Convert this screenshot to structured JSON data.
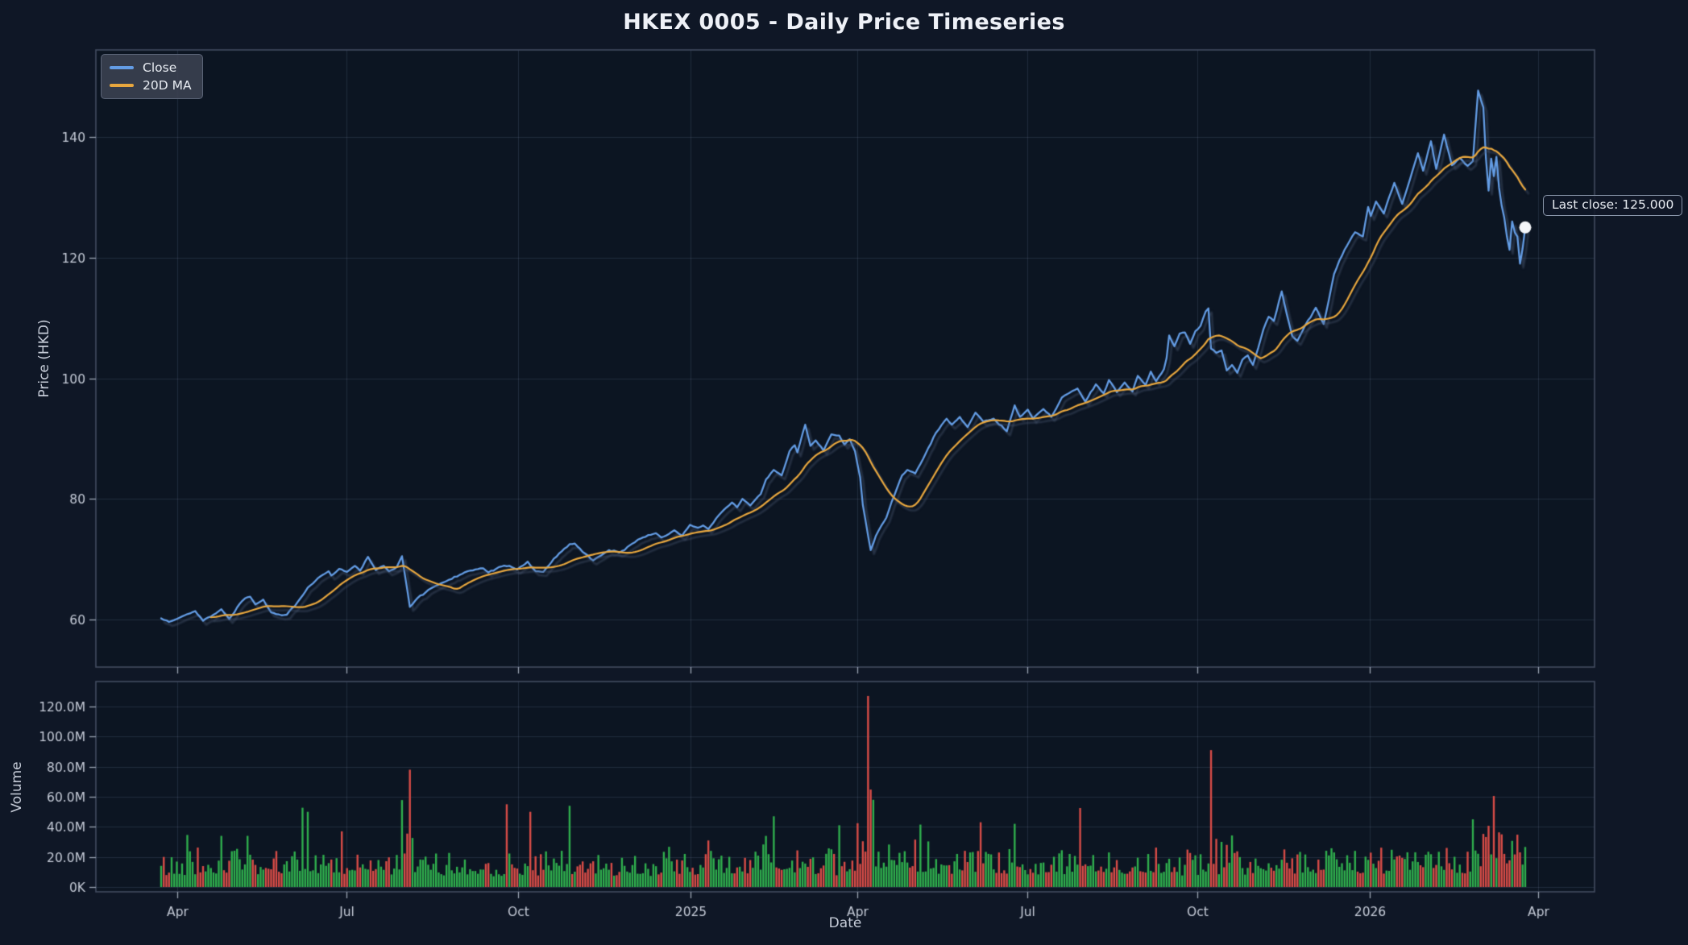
{
  "title": "HKEX 0005 - Daily Price Timeseries",
  "price_chart": {
    "ylabel": "Price (HKD)",
    "legend": [
      {
        "label": "Close",
        "color": "#639ce4"
      },
      {
        "label": "20D MA",
        "color": "#e8a73e"
      }
    ],
    "annotation": {
      "text": "Last close: 125.000"
    },
    "y_ticks": [
      {
        "label": "60",
        "value": 60
      },
      {
        "label": "80",
        "value": 80
      },
      {
        "label": "100",
        "value": 100
      },
      {
        "label": "120",
        "value": 120
      },
      {
        "label": "140",
        "value": 140
      }
    ],
    "ylim": [
      52.1,
      154.4
    ]
  },
  "volume_chart": {
    "ylabel": "Volume",
    "y_ticks": [
      {
        "label": "0K",
        "value": 0
      },
      {
        "label": "20.0M",
        "value": 20
      },
      {
        "label": "40.0M",
        "value": 40
      },
      {
        "label": "60.0M",
        "value": 60
      },
      {
        "label": "80.0M",
        "value": 80
      },
      {
        "label": "100.0M",
        "value": 100
      },
      {
        "label": "120.0M",
        "value": 120
      }
    ],
    "ylim": [
      -3.2,
      136.6
    ]
  },
  "x_axis": {
    "label": "Date",
    "ticks": [
      {
        "label": "Apr",
        "day": 6.2
      },
      {
        "label": "Jul",
        "day": 70.8
      },
      {
        "label": "Oct",
        "day": 136.3
      },
      {
        "label": "2025",
        "day": 202.2
      },
      {
        "label": "Apr",
        "day": 265.9
      },
      {
        "label": "Jul",
        "day": 330.8
      },
      {
        "label": "Oct",
        "day": 395.8
      },
      {
        "label": "2026",
        "day": 461.6
      },
      {
        "label": "Apr",
        "day": 525.9
      }
    ],
    "xlim_days": [
      -24.9,
      547.4
    ]
  },
  "colors": {
    "background": "#0f1726",
    "axes_background": "#0c1522",
    "grid": "rgba(122,138,168,0.20)",
    "spine": "#424c60",
    "tick": "#9aa3b2",
    "tick_label": "#c6ccd8",
    "close_line": "#639ce4",
    "ma_line": "#e8a73e",
    "line_shadow": "rgba(73,88,114,0.50)",
    "volume_up": "#2fae4d",
    "volume_down": "#d84c47",
    "last_dot": "#f4f6f9"
  },
  "chart_data": {
    "type": "line+bar",
    "x_domain": "daily trading days, late Mar 2024 to late Mar 2026",
    "n_days": 522,
    "last_close": 125.0,
    "series": [
      {
        "name": "Close",
        "type": "line",
        "anchors": [
          [
            0,
            60.2
          ],
          [
            3,
            59.6
          ],
          [
            6,
            60.1
          ],
          [
            10,
            60.9
          ],
          [
            13,
            61.4
          ],
          [
            16,
            59.8
          ],
          [
            20,
            60.8
          ],
          [
            23,
            61.7
          ],
          [
            26,
            60.1
          ],
          [
            30,
            62.6
          ],
          [
            32,
            63.5
          ],
          [
            34,
            63.8
          ],
          [
            36,
            62.5
          ],
          [
            39,
            63.3
          ],
          [
            42,
            61.2
          ],
          [
            46,
            60.7
          ],
          [
            48,
            60.8
          ],
          [
            53,
            63.4
          ],
          [
            56,
            65.3
          ],
          [
            60,
            66.9
          ],
          [
            64,
            68.0
          ],
          [
            65,
            67.3
          ],
          [
            68,
            68.4
          ],
          [
            71,
            67.9
          ],
          [
            74,
            68.9
          ],
          [
            76,
            68.1
          ],
          [
            79,
            70.4
          ],
          [
            82,
            68.2
          ],
          [
            85,
            68.9
          ],
          [
            87,
            68.0
          ],
          [
            90,
            68.7
          ],
          [
            92,
            70.5
          ],
          [
            95,
            62.1
          ],
          [
            98,
            63.6
          ],
          [
            102,
            64.9
          ],
          [
            106,
            65.8
          ],
          [
            110,
            66.6
          ],
          [
            114,
            67.4
          ],
          [
            117,
            68.0
          ],
          [
            120,
            68.3
          ],
          [
            123,
            68.5
          ],
          [
            125,
            67.8
          ],
          [
            129,
            68.7
          ],
          [
            133,
            68.9
          ],
          [
            136,
            68.3
          ],
          [
            140,
            69.6
          ],
          [
            143,
            68.0
          ],
          [
            146,
            67.9
          ],
          [
            150,
            70.1
          ],
          [
            153,
            71.3
          ],
          [
            156,
            72.5
          ],
          [
            158,
            72.6
          ],
          [
            161,
            71.2
          ],
          [
            165,
            69.8
          ],
          [
            168,
            70.6
          ],
          [
            171,
            71.5
          ],
          [
            175,
            71.1
          ],
          [
            179,
            72.3
          ],
          [
            183,
            73.4
          ],
          [
            186,
            74.0
          ],
          [
            189,
            74.3
          ],
          [
            191,
            73.6
          ],
          [
            194,
            74.2
          ],
          [
            196,
            74.8
          ],
          [
            199,
            73.9
          ],
          [
            202,
            75.7
          ],
          [
            205,
            75.2
          ],
          [
            207,
            75.6
          ],
          [
            209,
            75.0
          ],
          [
            213,
            77.3
          ],
          [
            216,
            78.6
          ],
          [
            218,
            79.4
          ],
          [
            220,
            78.6
          ],
          [
            222,
            80.0
          ],
          [
            225,
            78.9
          ],
          [
            229,
            80.8
          ],
          [
            231,
            83.2
          ],
          [
            234,
            84.8
          ],
          [
            237,
            83.9
          ],
          [
            240,
            87.9
          ],
          [
            242,
            88.9
          ],
          [
            243,
            87.7
          ],
          [
            246,
            92.3
          ],
          [
            248,
            88.8
          ],
          [
            250,
            89.7
          ],
          [
            253,
            88.0
          ],
          [
            256,
            90.7
          ],
          [
            259,
            90.5
          ],
          [
            261,
            89.0
          ],
          [
            263,
            89.9
          ],
          [
            265,
            87.9
          ],
          [
            267,
            83.5
          ],
          [
            268,
            79.0
          ],
          [
            270,
            73.9
          ],
          [
            271,
            71.5
          ],
          [
            273,
            73.9
          ],
          [
            275,
            75.5
          ],
          [
            277,
            76.9
          ],
          [
            279,
            79.5
          ],
          [
            281,
            81.7
          ],
          [
            283,
            83.9
          ],
          [
            285,
            84.8
          ],
          [
            288,
            84.2
          ],
          [
            292,
            87.5
          ],
          [
            296,
            91.0
          ],
          [
            300,
            93.3
          ],
          [
            302,
            92.3
          ],
          [
            305,
            93.6
          ],
          [
            308,
            91.9
          ],
          [
            311,
            94.3
          ],
          [
            314,
            92.8
          ],
          [
            318,
            93.3
          ],
          [
            323,
            91.2
          ],
          [
            326,
            95.5
          ],
          [
            328,
            93.6
          ],
          [
            331,
            94.8
          ],
          [
            333,
            93.3
          ],
          [
            337,
            94.9
          ],
          [
            340,
            93.6
          ],
          [
            344,
            96.8
          ],
          [
            347,
            97.6
          ],
          [
            350,
            98.3
          ],
          [
            353,
            96.1
          ],
          [
            357,
            99.0
          ],
          [
            360,
            97.5
          ],
          [
            362,
            99.7
          ],
          [
            365,
            97.7
          ],
          [
            368,
            99.3
          ],
          [
            371,
            97.8
          ],
          [
            373,
            100.4
          ],
          [
            376,
            98.9
          ],
          [
            378,
            101.1
          ],
          [
            380,
            99.5
          ],
          [
            383,
            101.5
          ],
          [
            384,
            103.3
          ],
          [
            385,
            107.1
          ],
          [
            387,
            105.3
          ],
          [
            389,
            107.4
          ],
          [
            391,
            107.6
          ],
          [
            393,
            105.7
          ],
          [
            395,
            107.8
          ],
          [
            397,
            108.7
          ],
          [
            399,
            111.1
          ],
          [
            400,
            111.6
          ],
          [
            401,
            104.9
          ],
          [
            403,
            104.2
          ],
          [
            405,
            104.6
          ],
          [
            407,
            101.3
          ],
          [
            409,
            102.2
          ],
          [
            411,
            100.9
          ],
          [
            413,
            103.1
          ],
          [
            415,
            103.8
          ],
          [
            417,
            102.2
          ],
          [
            419,
            105.0
          ],
          [
            421,
            108.1
          ],
          [
            423,
            110.2
          ],
          [
            425,
            109.5
          ],
          [
            428,
            114.4
          ],
          [
            430,
            110.5
          ],
          [
            432,
            107.0
          ],
          [
            434,
            106.2
          ],
          [
            437,
            108.8
          ],
          [
            441,
            111.7
          ],
          [
            444,
            109.0
          ],
          [
            446,
            113.0
          ],
          [
            448,
            117.3
          ],
          [
            450,
            119.5
          ],
          [
            452,
            121.3
          ],
          [
            454,
            122.8
          ],
          [
            456,
            124.2
          ],
          [
            459,
            123.5
          ],
          [
            461,
            128.4
          ],
          [
            462,
            126.9
          ],
          [
            464,
            129.3
          ],
          [
            467,
            127.3
          ],
          [
            469,
            130.0
          ],
          [
            471,
            132.4
          ],
          [
            474,
            128.9
          ],
          [
            477,
            133.0
          ],
          [
            480,
            137.3
          ],
          [
            482,
            134.4
          ],
          [
            485,
            139.3
          ],
          [
            487,
            134.7
          ],
          [
            490,
            140.4
          ],
          [
            493,
            135.3
          ],
          [
            496,
            136.5
          ],
          [
            499,
            135.2
          ],
          [
            501,
            136.0
          ],
          [
            503,
            147.7
          ],
          [
            505,
            144.9
          ],
          [
            506,
            136.4
          ],
          [
            507,
            131.1
          ],
          [
            508,
            136.4
          ],
          [
            509,
            133.5
          ],
          [
            510,
            136.7
          ],
          [
            511,
            131.6
          ],
          [
            512,
            128.6
          ],
          [
            513,
            126.6
          ],
          [
            514,
            123.5
          ],
          [
            515,
            121.3
          ],
          [
            516,
            126.0
          ],
          [
            517,
            124.2
          ],
          [
            518,
            123.5
          ],
          [
            519,
            119.0
          ],
          [
            520,
            121.5
          ],
          [
            521,
            125.0
          ]
        ]
      },
      {
        "name": "20D MA",
        "type": "line",
        "derived": "rolling_mean_20_of_Close"
      },
      {
        "name": "Volume",
        "type": "bar",
        "unit": "millions of shares",
        "base_range_m": [
          5,
          45
        ],
        "spikes": [
          [
            23,
            34
          ],
          [
            33,
            34
          ],
          [
            54,
            52.7
          ],
          [
            56,
            50
          ],
          [
            69,
            37
          ],
          [
            92,
            57.8
          ],
          [
            95,
            78
          ],
          [
            132,
            55
          ],
          [
            141,
            50
          ],
          [
            156,
            54
          ],
          [
            234,
            47
          ],
          [
            270,
            127
          ],
          [
            271,
            64.8
          ],
          [
            272,
            58
          ],
          [
            326,
            42
          ],
          [
            351,
            52.5
          ],
          [
            401,
            91
          ],
          [
            403,
            32
          ],
          [
            405,
            30
          ],
          [
            501,
            45
          ],
          [
            505,
            35.3
          ],
          [
            507,
            40.7
          ],
          [
            509,
            60.5
          ],
          [
            512,
            35
          ],
          [
            518,
            34.8
          ]
        ],
        "color_rule": "green if close >= previous close else red"
      }
    ]
  }
}
